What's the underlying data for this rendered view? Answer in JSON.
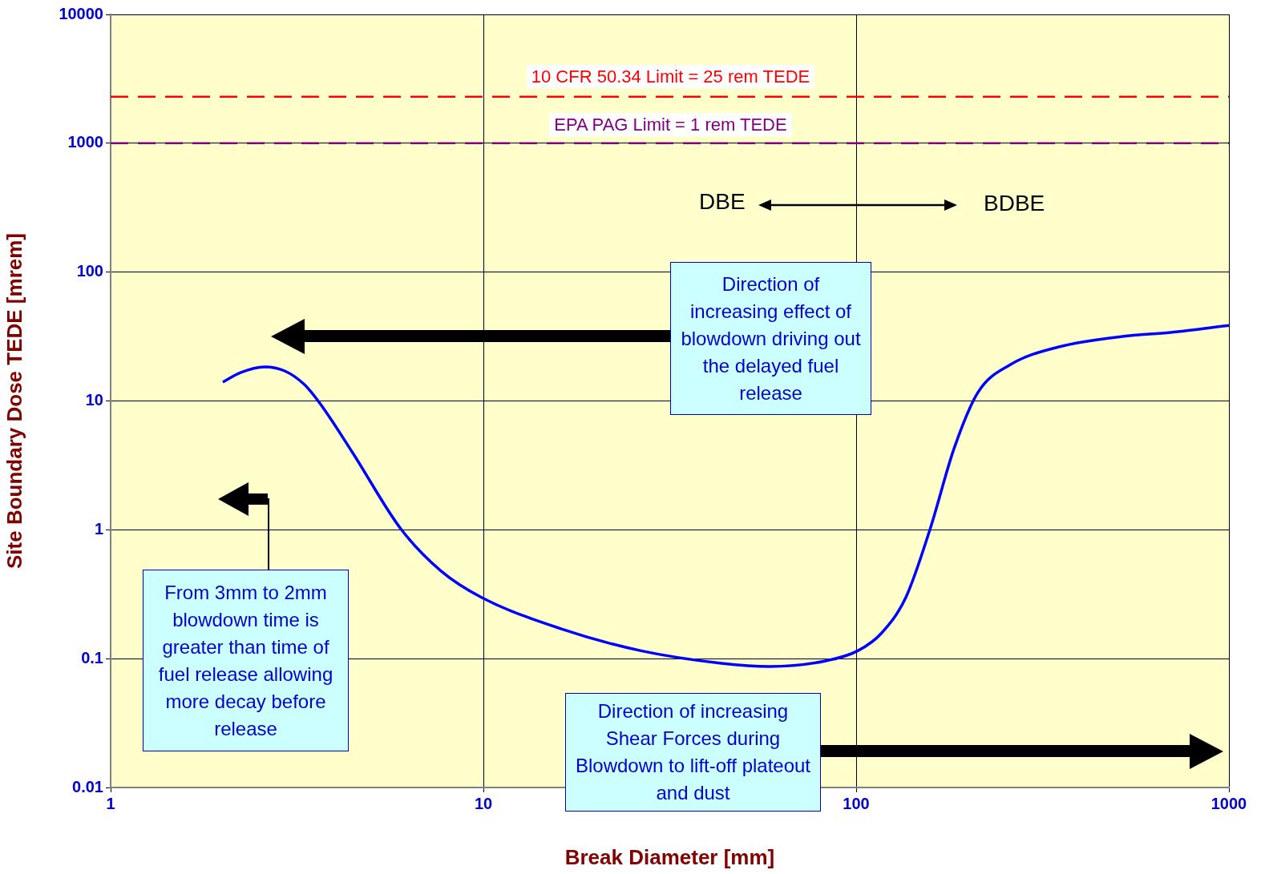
{
  "chart_data": {
    "type": "line",
    "xlabel": "Break Diameter [mm]",
    "ylabel": "Site Boundary Dose TEDE [mrem]",
    "log": "xy",
    "grid": true,
    "legend": false,
    "marker": "none",
    "line_style": "solid",
    "xlim": [
      1,
      1000
    ],
    "xticks": [
      1,
      10,
      100,
      1000
    ],
    "ylim": [
      0.01,
      10000
    ],
    "yticks": [
      0.01,
      0.1,
      1,
      10,
      100,
      1000,
      10000
    ],
    "series": [
      {
        "color": "#0000ff",
        "x": [
          2.0,
          2.23,
          2.59,
          2.93,
          3.31,
          3.66,
          4.46,
          6.0,
          7.69,
          9.86,
          16.2,
          26.5,
          43.5,
          58.6,
          82.8,
          101,
          117,
          136,
          158,
          183,
          212,
          259,
          348,
          518,
          697,
          1000
        ],
        "values": [
          14,
          16.6,
          18.4,
          17.1,
          13.4,
          9.4,
          3.96,
          1.02,
          0.48,
          0.3,
          0.17,
          0.115,
          0.092,
          0.087,
          0.096,
          0.115,
          0.158,
          0.3,
          1.02,
          4.26,
          11.6,
          19.1,
          26.2,
          31.7,
          34,
          38.6
        ]
      }
    ],
    "ref_lines": [
      {
        "axis": "y",
        "value": 2300,
        "color": "#ff0000",
        "line_style": "dashed"
      },
      {
        "axis": "y",
        "value": 1000,
        "color": "#800080",
        "line_style": "dashed"
      }
    ],
    "annotations": [
      "10 CFR 50.34 Limit = 25 rem TEDE",
      "EPA PAG Limit = 1 rem TEDE",
      "DBE",
      "BDBE",
      "Direction of increasing effect of blowdown driving out the delayed fuel release",
      "From 3mm to 2mm blowdown time is greater than time of fuel release allowing more decay before release",
      "Direction of increasing Shear Forces during Blowdown to lift-off plateout and dust"
    ]
  }
}
